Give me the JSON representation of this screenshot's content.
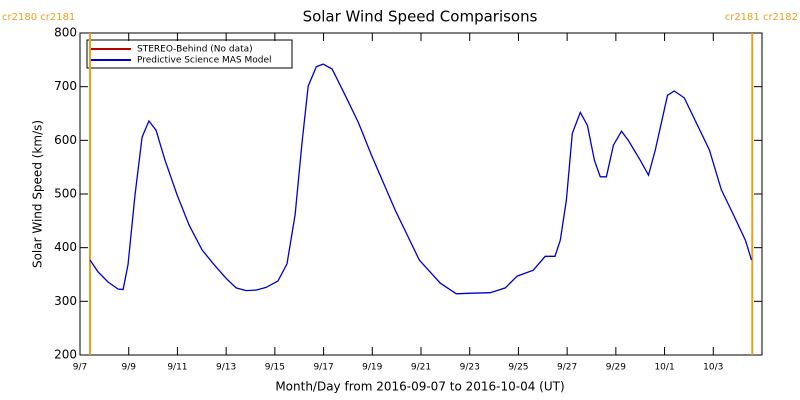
{
  "chart_data": {
    "type": "line",
    "title": "Solar Wind Speed Comparisons",
    "x_label": "Month/Day from 2016-09-07 to 2016-10-04 (UT)",
    "y_label": "Solar Wind Speed (km/s)",
    "xlim": [
      0,
      28
    ],
    "ylim": [
      200,
      800
    ],
    "xticks": [
      {
        "value": 0,
        "label": "9/7"
      },
      {
        "value": 2,
        "label": "9/9"
      },
      {
        "value": 4,
        "label": "9/11"
      },
      {
        "value": 6,
        "label": "9/13"
      },
      {
        "value": 8,
        "label": "9/15"
      },
      {
        "value": 10,
        "label": "9/17"
      },
      {
        "value": 12,
        "label": "9/19"
      },
      {
        "value": 14,
        "label": "9/21"
      },
      {
        "value": 16,
        "label": "9/23"
      },
      {
        "value": 18,
        "label": "9/25"
      },
      {
        "value": 20,
        "label": "9/27"
      },
      {
        "value": 22,
        "label": "9/29"
      },
      {
        "value": 24,
        "label": "10/1"
      },
      {
        "value": 26,
        "label": "10/3"
      }
    ],
    "yticks": [
      200,
      300,
      400,
      500,
      600,
      700,
      800
    ],
    "legend": [
      {
        "label": "STEREO-Behind (No data)",
        "color": "#c00000"
      },
      {
        "label": "Predictive Science MAS Model",
        "color": "#0000cc"
      }
    ],
    "markers": [
      {
        "x": 0.41,
        "label": "cr2180 cr2181",
        "color": "#e8a020"
      },
      {
        "x": 27.6,
        "label": "cr2181 cr2182",
        "color": "#e8a020"
      }
    ],
    "series": [
      {
        "name": "Predictive Science MAS Model",
        "color": "#0000cc",
        "x": [
          0.41,
          0.74,
          1.15,
          1.56,
          1.77,
          1.97,
          2.26,
          2.55,
          2.83,
          3.12,
          3.49,
          3.99,
          4.48,
          5.01,
          5.51,
          6.0,
          6.41,
          6.82,
          7.23,
          7.64,
          8.13,
          8.5,
          8.83,
          9.12,
          9.37,
          9.7,
          9.98,
          10.35,
          10.89,
          11.42,
          11.96,
          12.94,
          13.93,
          14.79,
          15.45,
          15.94,
          16.84,
          17.46,
          17.95,
          18.61,
          19.1,
          19.5,
          19.72,
          19.97,
          20.21,
          20.54,
          20.83,
          21.12,
          21.36,
          21.61,
          21.9,
          22.23,
          22.51,
          23.0,
          23.34,
          23.62,
          24.12,
          24.4,
          24.81,
          25.35,
          25.84,
          26.33,
          26.83,
          27.32,
          27.57
        ],
        "values": [
          377,
          355,
          336,
          323,
          322,
          368,
          498,
          606,
          636,
          619,
          563,
          498,
          442,
          396,
          368,
          343,
          325,
          320,
          321,
          326,
          338,
          370,
          461,
          597,
          701,
          737,
          742,
          733,
          684,
          634,
          573,
          470,
          377,
          334,
          314,
          315,
          316,
          325,
          347,
          358,
          384,
          384,
          414,
          489,
          613,
          652,
          628,
          563,
          532,
          532,
          591,
          617,
          600,
          563,
          535,
          582,
          684,
          692,
          679,
          628,
          582,
          508,
          461,
          414,
          377
        ]
      }
    ]
  }
}
